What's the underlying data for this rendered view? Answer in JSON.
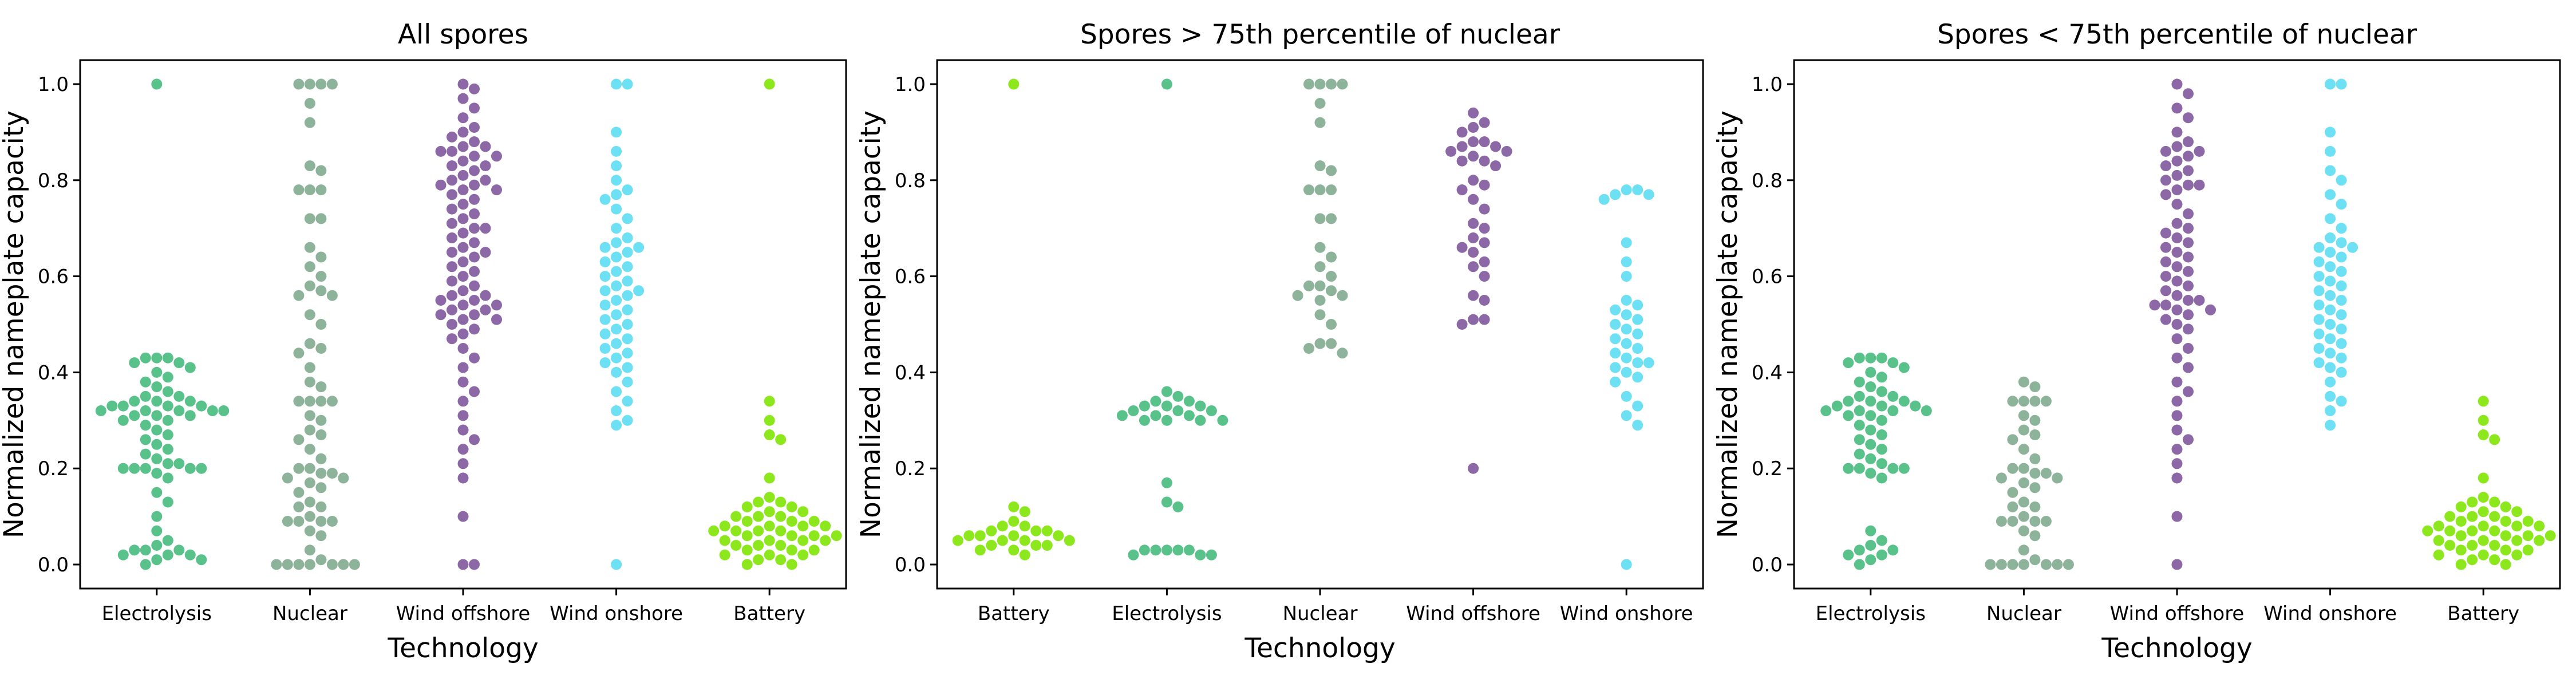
{
  "colors": {
    "Electrolysis": "#59c18a",
    "Nuclear": "#8db39a",
    "Wind offshore": "#8c68a6",
    "Wind onshore": "#6ee0f3",
    "Battery": "#8ce81c"
  },
  "chart_data": [
    {
      "type": "scatter",
      "title": "All spores",
      "xlabel": "Technology",
      "ylabel": "Normalized nameplate capacity",
      "ylim": [
        -0.05,
        1.05
      ],
      "yticks": [
        "0.0",
        "0.2",
        "0.4",
        "0.6",
        "0.8",
        "1.0"
      ],
      "categories": [
        "Electrolysis",
        "Nuclear",
        "Wind offshore",
        "Wind onshore",
        "Battery"
      ],
      "series": [
        {
          "category": "Electrolysis",
          "values": [
            1.0,
            0.43,
            0.43,
            0.43,
            0.42,
            0.42,
            0.41,
            0.4,
            0.39,
            0.38,
            0.37,
            0.36,
            0.35,
            0.35,
            0.34,
            0.34,
            0.34,
            0.33,
            0.33,
            0.33,
            0.33,
            0.32,
            0.32,
            0.32,
            0.32,
            0.32,
            0.31,
            0.31,
            0.31,
            0.3,
            0.3,
            0.29,
            0.28,
            0.27,
            0.26,
            0.25,
            0.24,
            0.23,
            0.22,
            0.21,
            0.21,
            0.2,
            0.2,
            0.2,
            0.2,
            0.2,
            0.19,
            0.18,
            0.15,
            0.13,
            0.1,
            0.07,
            0.05,
            0.04,
            0.03,
            0.03,
            0.03,
            0.02,
            0.02,
            0.02,
            0.01,
            0.01,
            0.0
          ]
        },
        {
          "category": "Nuclear",
          "values": [
            1.0,
            1.0,
            1.0,
            1.0,
            0.96,
            0.92,
            0.83,
            0.82,
            0.78,
            0.78,
            0.78,
            0.72,
            0.72,
            0.66,
            0.64,
            0.62,
            0.6,
            0.58,
            0.57,
            0.56,
            0.56,
            0.52,
            0.5,
            0.46,
            0.45,
            0.44,
            0.41,
            0.38,
            0.37,
            0.34,
            0.34,
            0.34,
            0.34,
            0.31,
            0.3,
            0.28,
            0.27,
            0.26,
            0.24,
            0.22,
            0.2,
            0.2,
            0.19,
            0.19,
            0.18,
            0.18,
            0.17,
            0.16,
            0.15,
            0.13,
            0.12,
            0.12,
            0.1,
            0.09,
            0.09,
            0.09,
            0.09,
            0.07,
            0.06,
            0.03,
            0.01,
            0.0,
            0.0,
            0.0,
            0.0,
            0.0,
            0.0,
            0.0
          ]
        },
        {
          "category": "Wind offshore",
          "values": [
            1.0,
            0.99,
            0.97,
            0.95,
            0.93,
            0.91,
            0.9,
            0.89,
            0.88,
            0.87,
            0.87,
            0.86,
            0.86,
            0.85,
            0.85,
            0.84,
            0.83,
            0.83,
            0.82,
            0.81,
            0.8,
            0.8,
            0.79,
            0.79,
            0.78,
            0.78,
            0.77,
            0.76,
            0.75,
            0.74,
            0.73,
            0.72,
            0.71,
            0.7,
            0.7,
            0.69,
            0.68,
            0.67,
            0.66,
            0.65,
            0.65,
            0.64,
            0.63,
            0.62,
            0.61,
            0.6,
            0.59,
            0.58,
            0.57,
            0.56,
            0.56,
            0.55,
            0.55,
            0.54,
            0.54,
            0.53,
            0.53,
            0.52,
            0.52,
            0.51,
            0.51,
            0.5,
            0.49,
            0.48,
            0.47,
            0.45,
            0.43,
            0.41,
            0.38,
            0.36,
            0.34,
            0.31,
            0.28,
            0.26,
            0.24,
            0.21,
            0.18,
            0.1,
            0.0,
            0.0
          ]
        },
        {
          "category": "Wind onshore",
          "values": [
            1.0,
            1.0,
            0.9,
            0.86,
            0.83,
            0.8,
            0.78,
            0.77,
            0.76,
            0.74,
            0.72,
            0.7,
            0.68,
            0.67,
            0.66,
            0.66,
            0.65,
            0.64,
            0.63,
            0.62,
            0.61,
            0.6,
            0.59,
            0.58,
            0.57,
            0.57,
            0.56,
            0.55,
            0.54,
            0.53,
            0.52,
            0.51,
            0.5,
            0.49,
            0.48,
            0.47,
            0.46,
            0.45,
            0.44,
            0.43,
            0.42,
            0.41,
            0.4,
            0.38,
            0.36,
            0.34,
            0.32,
            0.3,
            0.29,
            0.0
          ]
        },
        {
          "category": "Battery",
          "values": [
            1.0,
            0.34,
            0.3,
            0.27,
            0.26,
            0.18,
            0.14,
            0.13,
            0.13,
            0.12,
            0.12,
            0.11,
            0.11,
            0.1,
            0.1,
            0.1,
            0.09,
            0.09,
            0.09,
            0.08,
            0.08,
            0.08,
            0.08,
            0.07,
            0.07,
            0.07,
            0.07,
            0.06,
            0.06,
            0.06,
            0.06,
            0.05,
            0.05,
            0.05,
            0.05,
            0.04,
            0.04,
            0.04,
            0.03,
            0.03,
            0.03,
            0.02,
            0.02,
            0.02,
            0.01,
            0.01,
            0.0,
            0.0
          ]
        }
      ]
    },
    {
      "type": "scatter",
      "title": "Spores > 75th percentile of nuclear",
      "xlabel": "Technology",
      "ylabel": "Normalized nameplate capacity",
      "ylim": [
        -0.05,
        1.05
      ],
      "yticks": [
        "0.0",
        "0.2",
        "0.4",
        "0.6",
        "0.8",
        "1.0"
      ],
      "categories": [
        "Battery",
        "Electrolysis",
        "Nuclear",
        "Wind offshore",
        "Wind onshore"
      ],
      "series": [
        {
          "category": "Battery",
          "values": [
            1.0,
            0.12,
            0.11,
            0.09,
            0.08,
            0.08,
            0.07,
            0.07,
            0.07,
            0.06,
            0.06,
            0.06,
            0.06,
            0.05,
            0.05,
            0.05,
            0.05,
            0.04,
            0.04,
            0.04,
            0.03,
            0.03,
            0.02
          ]
        },
        {
          "category": "Electrolysis",
          "values": [
            1.0,
            0.36,
            0.35,
            0.34,
            0.34,
            0.33,
            0.33,
            0.33,
            0.32,
            0.32,
            0.32,
            0.31,
            0.31,
            0.31,
            0.3,
            0.3,
            0.3,
            0.3,
            0.17,
            0.13,
            0.12,
            0.03,
            0.03,
            0.03,
            0.03,
            0.03,
            0.02,
            0.02,
            0.02
          ]
        },
        {
          "category": "Nuclear",
          "values": [
            1.0,
            1.0,
            1.0,
            1.0,
            0.96,
            0.92,
            0.83,
            0.82,
            0.78,
            0.78,
            0.78,
            0.72,
            0.72,
            0.66,
            0.64,
            0.62,
            0.6,
            0.58,
            0.58,
            0.57,
            0.56,
            0.56,
            0.55,
            0.52,
            0.5,
            0.46,
            0.46,
            0.45,
            0.44
          ]
        },
        {
          "category": "Wind offshore",
          "values": [
            0.94,
            0.92,
            0.91,
            0.9,
            0.88,
            0.88,
            0.87,
            0.87,
            0.86,
            0.86,
            0.85,
            0.84,
            0.84,
            0.83,
            0.8,
            0.79,
            0.78,
            0.76,
            0.74,
            0.71,
            0.7,
            0.68,
            0.67,
            0.66,
            0.65,
            0.63,
            0.62,
            0.6,
            0.56,
            0.55,
            0.51,
            0.51,
            0.5,
            0.2
          ]
        },
        {
          "category": "Wind onshore",
          "values": [
            0.78,
            0.78,
            0.77,
            0.77,
            0.76,
            0.67,
            0.63,
            0.6,
            0.55,
            0.54,
            0.53,
            0.52,
            0.51,
            0.5,
            0.49,
            0.48,
            0.47,
            0.46,
            0.45,
            0.44,
            0.43,
            0.42,
            0.42,
            0.41,
            0.4,
            0.39,
            0.38,
            0.35,
            0.33,
            0.31,
            0.29,
            0.0
          ]
        }
      ]
    },
    {
      "type": "scatter",
      "title": "Spores < 75th percentile of nuclear",
      "xlabel": "Technology",
      "ylabel": "Normalized nameplate capacity",
      "ylim": [
        -0.05,
        1.05
      ],
      "yticks": [
        "0.0",
        "0.2",
        "0.4",
        "0.6",
        "0.8",
        "1.0"
      ],
      "categories": [
        "Electrolysis",
        "Nuclear",
        "Wind offshore",
        "Wind onshore",
        "Battery"
      ],
      "series": [
        {
          "category": "Electrolysis",
          "values": [
            0.43,
            0.43,
            0.43,
            0.42,
            0.42,
            0.41,
            0.4,
            0.39,
            0.38,
            0.37,
            0.36,
            0.35,
            0.35,
            0.34,
            0.34,
            0.34,
            0.33,
            0.33,
            0.33,
            0.32,
            0.32,
            0.32,
            0.32,
            0.31,
            0.31,
            0.3,
            0.29,
            0.28,
            0.27,
            0.26,
            0.25,
            0.24,
            0.23,
            0.22,
            0.21,
            0.2,
            0.2,
            0.2,
            0.2,
            0.19,
            0.18,
            0.07,
            0.05,
            0.04,
            0.03,
            0.03,
            0.02,
            0.02,
            0.01,
            0.0
          ]
        },
        {
          "category": "Nuclear",
          "values": [
            0.38,
            0.37,
            0.34,
            0.34,
            0.34,
            0.34,
            0.31,
            0.3,
            0.28,
            0.27,
            0.26,
            0.24,
            0.22,
            0.2,
            0.2,
            0.19,
            0.19,
            0.18,
            0.18,
            0.17,
            0.16,
            0.15,
            0.13,
            0.12,
            0.12,
            0.1,
            0.09,
            0.09,
            0.09,
            0.09,
            0.07,
            0.06,
            0.03,
            0.01,
            0.0,
            0.0,
            0.0,
            0.0,
            0.0,
            0.0,
            0.0
          ]
        },
        {
          "category": "Wind offshore",
          "values": [
            1.0,
            0.98,
            0.95,
            0.93,
            0.9,
            0.88,
            0.87,
            0.86,
            0.86,
            0.85,
            0.84,
            0.83,
            0.82,
            0.81,
            0.8,
            0.79,
            0.79,
            0.78,
            0.77,
            0.75,
            0.73,
            0.71,
            0.7,
            0.69,
            0.68,
            0.67,
            0.66,
            0.65,
            0.64,
            0.63,
            0.62,
            0.61,
            0.6,
            0.59,
            0.58,
            0.57,
            0.56,
            0.55,
            0.55,
            0.54,
            0.54,
            0.53,
            0.53,
            0.52,
            0.51,
            0.5,
            0.49,
            0.47,
            0.45,
            0.43,
            0.41,
            0.38,
            0.36,
            0.34,
            0.31,
            0.28,
            0.26,
            0.24,
            0.21,
            0.18,
            0.1,
            0.0
          ]
        },
        {
          "category": "Wind onshore",
          "values": [
            1.0,
            1.0,
            0.9,
            0.86,
            0.82,
            0.8,
            0.77,
            0.75,
            0.72,
            0.7,
            0.68,
            0.67,
            0.66,
            0.66,
            0.65,
            0.64,
            0.63,
            0.62,
            0.61,
            0.6,
            0.59,
            0.58,
            0.57,
            0.56,
            0.55,
            0.54,
            0.53,
            0.52,
            0.51,
            0.5,
            0.49,
            0.48,
            0.47,
            0.46,
            0.45,
            0.44,
            0.43,
            0.42,
            0.41,
            0.4,
            0.38,
            0.35,
            0.34,
            0.32,
            0.29
          ]
        },
        {
          "category": "Battery",
          "values": [
            0.34,
            0.3,
            0.27,
            0.26,
            0.18,
            0.14,
            0.13,
            0.13,
            0.12,
            0.12,
            0.11,
            0.11,
            0.1,
            0.1,
            0.1,
            0.09,
            0.09,
            0.09,
            0.08,
            0.08,
            0.08,
            0.08,
            0.07,
            0.07,
            0.07,
            0.07,
            0.06,
            0.06,
            0.06,
            0.06,
            0.05,
            0.05,
            0.05,
            0.05,
            0.04,
            0.04,
            0.04,
            0.03,
            0.03,
            0.03,
            0.02,
            0.02,
            0.02,
            0.01,
            0.01,
            0.0,
            0.0
          ]
        }
      ]
    }
  ]
}
